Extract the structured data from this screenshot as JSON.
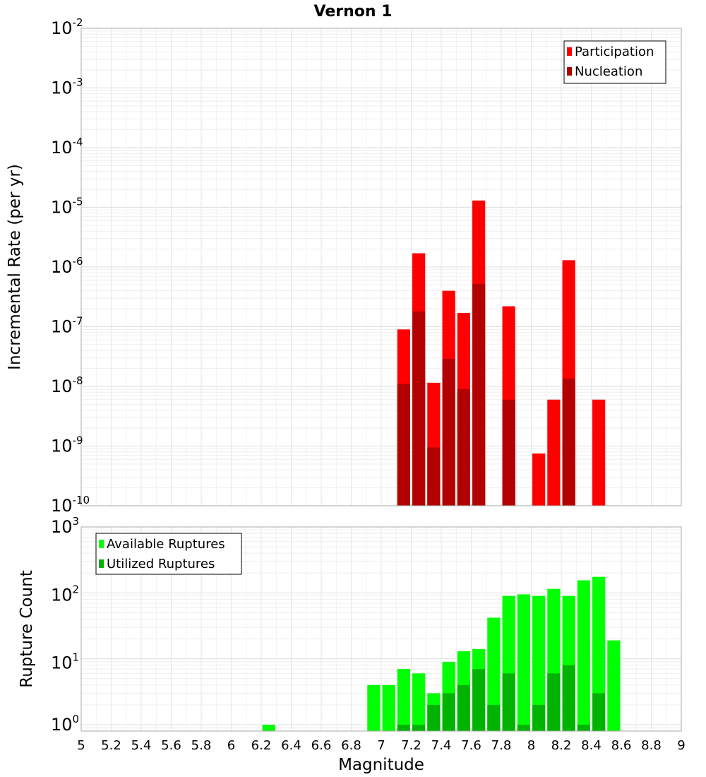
{
  "chart_data": [
    {
      "type": "bar",
      "title": "Vernon 1",
      "xlabel": "",
      "ylabel": "Incremental Rate (per yr)",
      "yscale": "log",
      "ylim": [
        1e-10,
        0.01
      ],
      "xlim": [
        5,
        9
      ],
      "grid": true,
      "legend_position": "top-right",
      "ytick_labels": [
        {
          "base": "10",
          "exp": "-10"
        },
        {
          "base": "10",
          "exp": "-9"
        },
        {
          "base": "10",
          "exp": "-8"
        },
        {
          "base": "10",
          "exp": "-7"
        },
        {
          "base": "10",
          "exp": "-6"
        },
        {
          "base": "10",
          "exp": "-5"
        },
        {
          "base": "10",
          "exp": "-4"
        },
        {
          "base": "10",
          "exp": "-3"
        },
        {
          "base": "10",
          "exp": "-2"
        }
      ],
      "series": [
        {
          "name": "Participation",
          "color": "#ff0000",
          "points": [
            {
              "x": 7.15,
              "y": 9e-08
            },
            {
              "x": 7.25,
              "y": 1.7e-06
            },
            {
              "x": 7.35,
              "y": 1.15e-08
            },
            {
              "x": 7.45,
              "y": 4e-07
            },
            {
              "x": 7.55,
              "y": 1.7e-07
            },
            {
              "x": 7.65,
              "y": 1.3e-05
            },
            {
              "x": 7.85,
              "y": 2.2e-07
            },
            {
              "x": 8.05,
              "y": 7.5e-10
            },
            {
              "x": 8.15,
              "y": 6e-09
            },
            {
              "x": 8.25,
              "y": 1.3e-06
            },
            {
              "x": 8.45,
              "y": 6e-09
            }
          ]
        },
        {
          "name": "Nucleation",
          "color": "#b30000",
          "points": [
            {
              "x": 7.15,
              "y": 1.1e-08
            },
            {
              "x": 7.25,
              "y": 1.8e-07
            },
            {
              "x": 7.35,
              "y": 9.5e-10
            },
            {
              "x": 7.45,
              "y": 2.9e-08
            },
            {
              "x": 7.55,
              "y": 9e-09
            },
            {
              "x": 7.65,
              "y": 5.2e-07
            },
            {
              "x": 7.85,
              "y": 6e-09
            },
            {
              "x": 8.25,
              "y": 1.35e-08
            }
          ]
        }
      ]
    },
    {
      "type": "bar",
      "title": "",
      "xlabel": "Magnitude",
      "ylabel": "Rupture Count",
      "yscale": "log",
      "ylim": [
        0.8,
        1000
      ],
      "xlim": [
        5,
        9
      ],
      "grid": true,
      "legend_position": "top-left",
      "xtick_labels": [
        "5",
        "5.2",
        "5.4",
        "5.6",
        "5.8",
        "6",
        "6.2",
        "6.4",
        "6.6",
        "6.8",
        "7",
        "7.2",
        "7.4",
        "7.6",
        "7.8",
        "8",
        "8.2",
        "8.4",
        "8.6",
        "8.8",
        "9"
      ],
      "ytick_labels": [
        {
          "base": "10",
          "exp": "0"
        },
        {
          "base": "10",
          "exp": "1"
        },
        {
          "base": "10",
          "exp": "2"
        },
        {
          "base": "10",
          "exp": "3"
        }
      ],
      "series": [
        {
          "name": "Available Ruptures",
          "color": "#00ff00",
          "points": [
            {
              "x": 6.25,
              "y": 1
            },
            {
              "x": 6.95,
              "y": 4
            },
            {
              "x": 7.05,
              "y": 4
            },
            {
              "x": 7.15,
              "y": 7
            },
            {
              "x": 7.25,
              "y": 6
            },
            {
              "x": 7.35,
              "y": 3
            },
            {
              "x": 7.45,
              "y": 9
            },
            {
              "x": 7.55,
              "y": 13
            },
            {
              "x": 7.65,
              "y": 14
            },
            {
              "x": 7.75,
              "y": 42
            },
            {
              "x": 7.85,
              "y": 90
            },
            {
              "x": 7.95,
              "y": 95
            },
            {
              "x": 8.05,
              "y": 90
            },
            {
              "x": 8.15,
              "y": 115
            },
            {
              "x": 8.25,
              "y": 90
            },
            {
              "x": 8.35,
              "y": 155
            },
            {
              "x": 8.45,
              "y": 175
            },
            {
              "x": 8.55,
              "y": 19
            }
          ]
        },
        {
          "name": "Utilized Ruptures",
          "color": "#00b300",
          "points": [
            {
              "x": 7.15,
              "y": 1
            },
            {
              "x": 7.25,
              "y": 1
            },
            {
              "x": 7.35,
              "y": 2
            },
            {
              "x": 7.45,
              "y": 3
            },
            {
              "x": 7.55,
              "y": 4
            },
            {
              "x": 7.65,
              "y": 7
            },
            {
              "x": 7.75,
              "y": 2
            },
            {
              "x": 7.85,
              "y": 6
            },
            {
              "x": 7.95,
              "y": 1
            },
            {
              "x": 8.05,
              "y": 2
            },
            {
              "x": 8.15,
              "y": 6
            },
            {
              "x": 8.25,
              "y": 8
            },
            {
              "x": 8.35,
              "y": 1
            },
            {
              "x": 8.45,
              "y": 3
            }
          ]
        }
      ]
    }
  ]
}
